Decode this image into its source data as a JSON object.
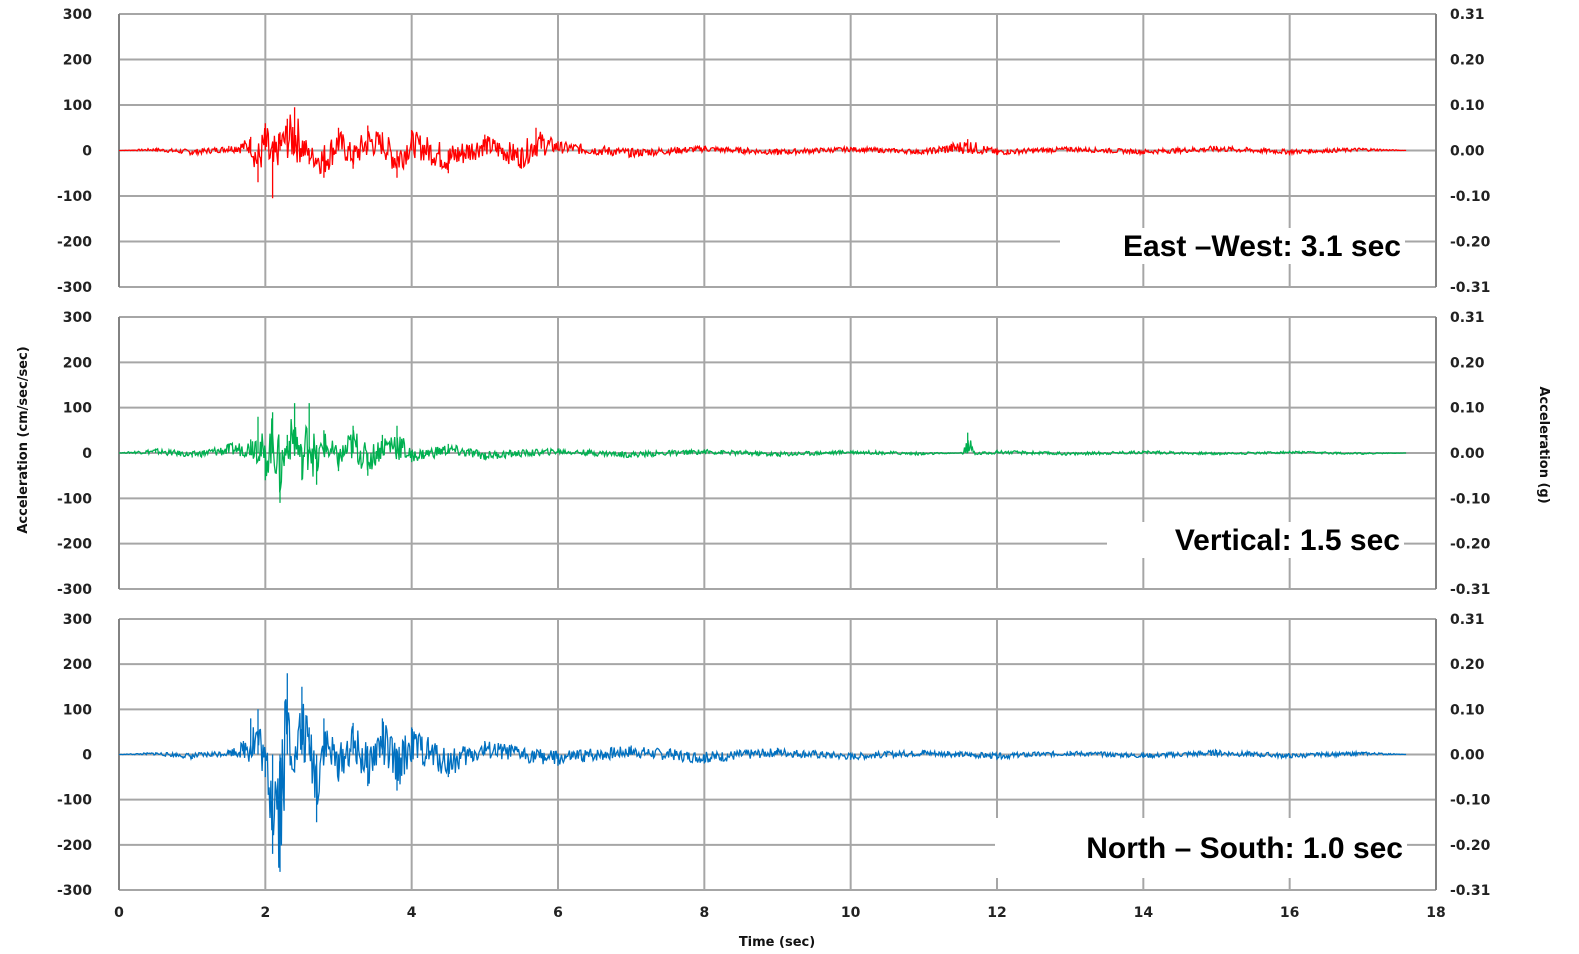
{
  "chart_data": [
    {
      "type": "line",
      "panel": "top",
      "label": "East –West: 3.1 sec",
      "series": [
        {
          "color": "#ff0000",
          "x": [
            0,
            0.5,
            1,
            1.5,
            1.8,
            1.9,
            2.0,
            2.1,
            2.2,
            2.3,
            2.4,
            2.6,
            2.8,
            3.0,
            3.2,
            3.4,
            3.6,
            3.8,
            4.0,
            4.5,
            5.0,
            5.5,
            5.7,
            6,
            7,
            8,
            9,
            10,
            11,
            11.6,
            12,
            13,
            14,
            15,
            16,
            17,
            17.6
          ],
          "y": [
            0,
            5,
            -10,
            10,
            30,
            -70,
            60,
            -105,
            40,
            70,
            95,
            -30,
            -60,
            50,
            -40,
            55,
            40,
            -60,
            45,
            -50,
            35,
            -40,
            50,
            20,
            -15,
            10,
            -10,
            8,
            -8,
            25,
            -10,
            8,
            -8,
            10,
            -8,
            6,
            0
          ]
        }
      ],
      "ylim": [
        -300,
        300
      ],
      "yticks": [
        300,
        200,
        100,
        0,
        -100,
        -200,
        -300
      ],
      "y2ticks": [
        "0.31",
        "0.20",
        "0.10",
        "0.00",
        "-0.10",
        "-0.20",
        "-0.31"
      ]
    },
    {
      "type": "line",
      "panel": "middle",
      "label": "Vertical: 1.5 sec",
      "series": [
        {
          "color": "#00b050",
          "x": [
            0,
            0.5,
            1,
            1.5,
            1.8,
            1.9,
            2.0,
            2.1,
            2.2,
            2.3,
            2.4,
            2.5,
            2.6,
            2.7,
            2.8,
            3.0,
            3.2,
            3.4,
            3.6,
            3.8,
            4.0,
            4.5,
            5,
            6,
            7,
            8,
            9,
            10,
            11,
            11.5,
            11.6,
            11.7,
            12,
            13,
            14,
            15,
            16,
            17,
            17.6
          ],
          "y": [
            0,
            10,
            -10,
            20,
            30,
            80,
            -60,
            90,
            -110,
            40,
            110,
            -60,
            110,
            -70,
            50,
            -40,
            60,
            -50,
            40,
            60,
            -20,
            20,
            -15,
            10,
            -10,
            8,
            -8,
            6,
            -5,
            0,
            45,
            -5,
            6,
            -5,
            5,
            -4,
            4,
            -3,
            0
          ]
        }
      ],
      "ylim": [
        -300,
        300
      ],
      "yticks": [
        300,
        200,
        100,
        0,
        -100,
        -200,
        -300
      ],
      "y2ticks": [
        "0.31",
        "0.20",
        "0.10",
        "0.00",
        "-0.10",
        "-0.20",
        "-0.31"
      ]
    },
    {
      "type": "line",
      "panel": "bottom",
      "label": "North – South: 1.0 sec",
      "series": [
        {
          "color": "#0070c0",
          "x": [
            0,
            0.5,
            1,
            1.5,
            1.7,
            1.8,
            1.9,
            2.0,
            2.1,
            2.2,
            2.3,
            2.4,
            2.5,
            2.6,
            2.7,
            2.8,
            3.0,
            3.2,
            3.4,
            3.6,
            3.8,
            4.0,
            4.5,
            5,
            6,
            7,
            8,
            9,
            10,
            11,
            12,
            13,
            14,
            15,
            16,
            17,
            17.6
          ],
          "y": [
            0,
            5,
            -10,
            10,
            30,
            80,
            100,
            -50,
            -220,
            -260,
            180,
            -40,
            150,
            60,
            -150,
            80,
            -60,
            70,
            -70,
            80,
            -80,
            60,
            -50,
            30,
            -25,
            20,
            -20,
            15,
            -12,
            10,
            -10,
            8,
            -8,
            10,
            -8,
            6,
            0
          ]
        }
      ],
      "ylim": [
        -300,
        300
      ],
      "yticks": [
        300,
        200,
        100,
        0,
        -100,
        -200,
        -300
      ],
      "y2ticks": [
        "0.31",
        "0.20",
        "0.10",
        "0.00",
        "-0.10",
        "-0.20",
        "-0.31"
      ],
      "xticks": [
        0,
        2,
        4,
        6,
        8,
        10,
        12,
        14,
        16,
        18
      ],
      "xlabel": "Time (sec)"
    }
  ],
  "ylabel_left": "Acceleration (cm/sec/sec)",
  "ylabel_right": "Acceleration (g)",
  "xlim": [
    0,
    18
  ]
}
